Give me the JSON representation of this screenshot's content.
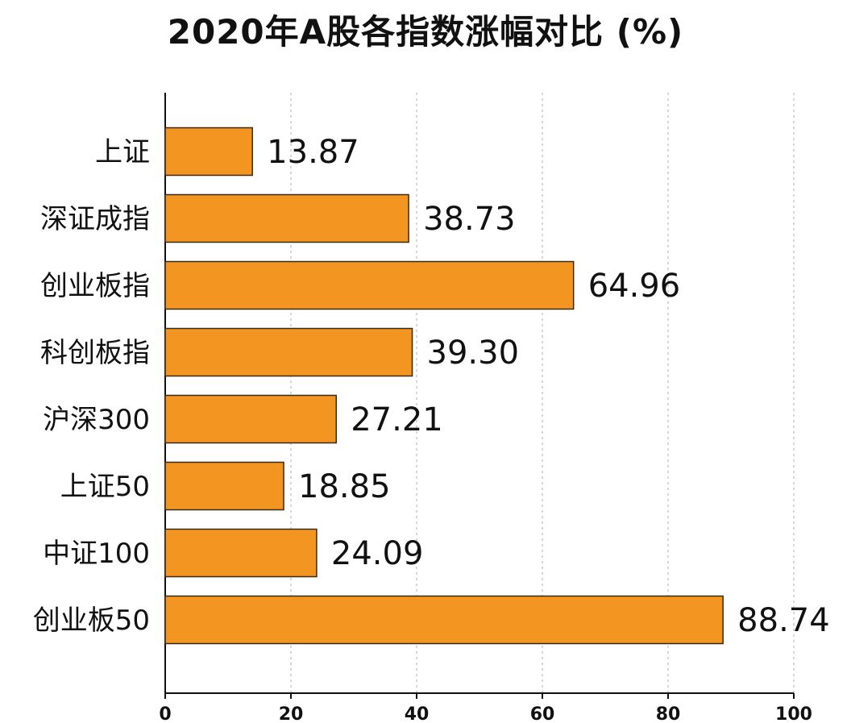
{
  "chart_data": {
    "type": "bar",
    "orientation": "horizontal",
    "title": "2020年A股各指数涨幅对比 (%)",
    "categories": [
      "上证",
      "深证成指",
      "创业板指",
      "科创板指",
      "沪深300",
      "上证50",
      "中证100",
      "创业板50"
    ],
    "values": [
      13.87,
      38.73,
      64.96,
      39.3,
      27.21,
      18.85,
      24.09,
      88.74
    ],
    "value_labels": [
      "13.87",
      "38.73",
      "64.96",
      "39.30",
      "27.21",
      "18.85",
      "24.09",
      "88.74"
    ],
    "xlim": [
      0,
      100
    ],
    "xticks": [
      "0",
      "20",
      "40",
      "60",
      "80",
      "100"
    ],
    "xlabel": "",
    "ylabel": "",
    "grid": "vertical dashed",
    "legend": "none",
    "bar_color": "#F39521",
    "bar_edge_color": "#3a2a18"
  }
}
